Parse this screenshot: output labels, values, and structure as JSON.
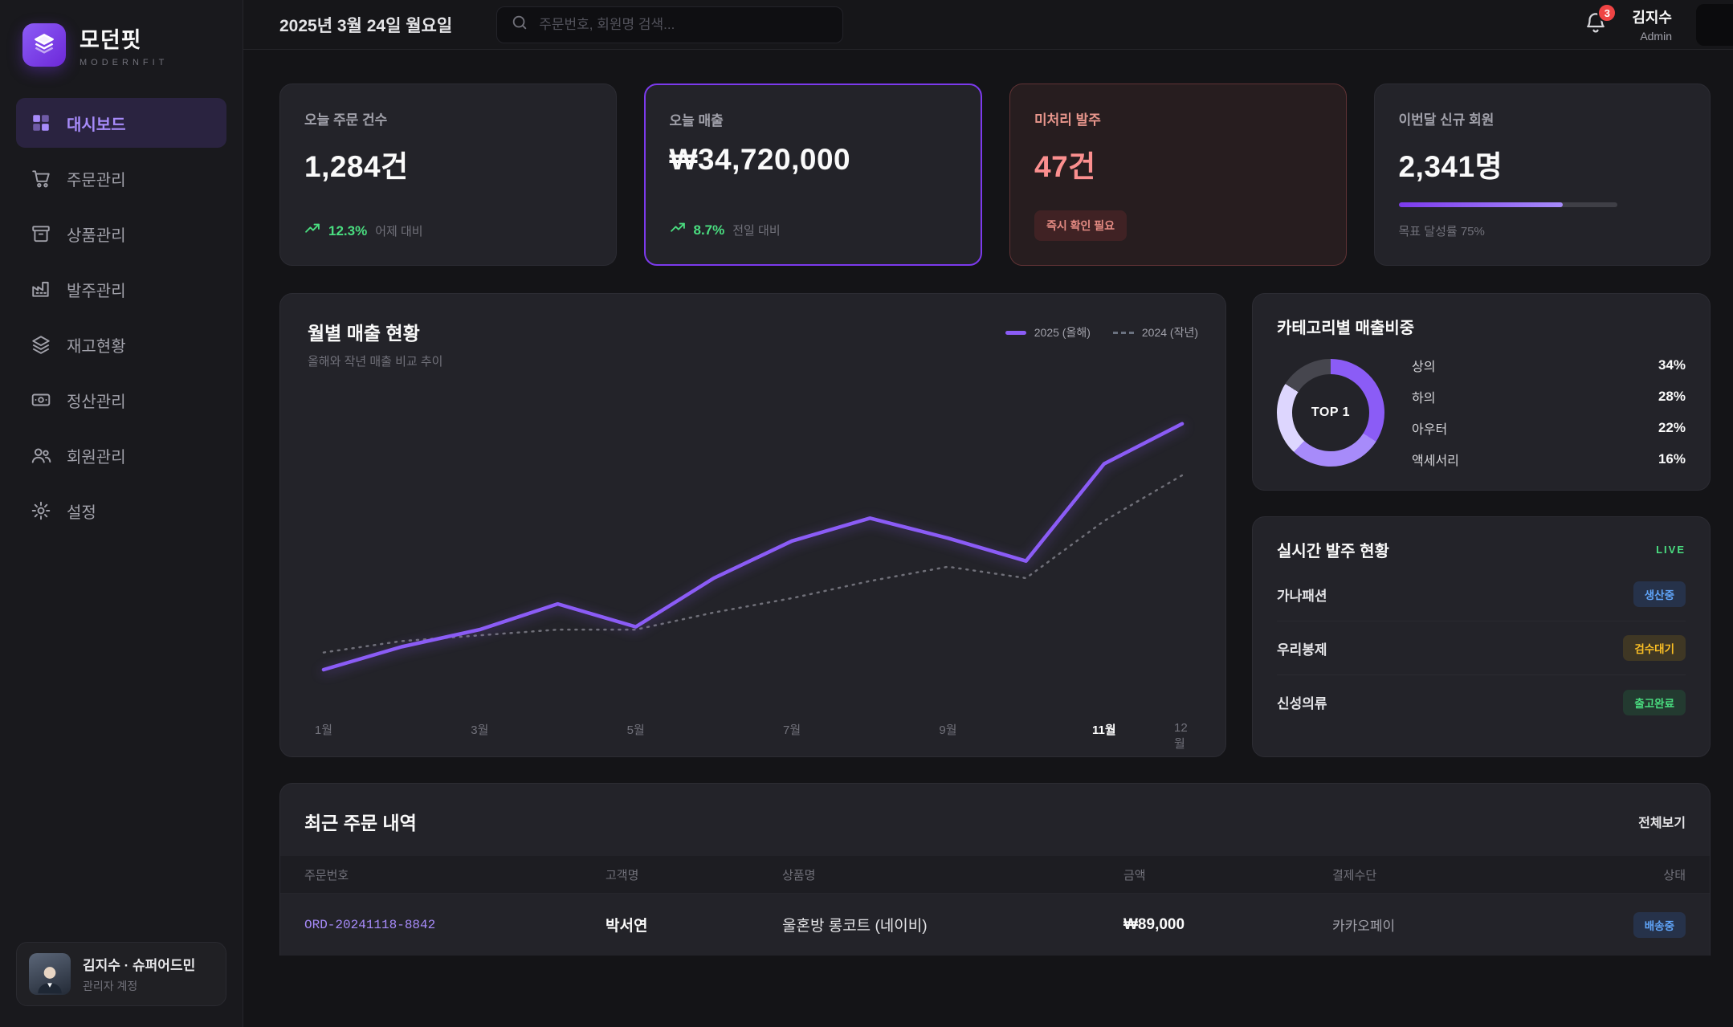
{
  "brand": {
    "name": "모던핏",
    "subtitle": "MODERNFIT"
  },
  "sidebar": {
    "items": [
      {
        "label": "대시보드",
        "active": true
      },
      {
        "label": "주문관리"
      },
      {
        "label": "상품관리"
      },
      {
        "label": "발주관리"
      },
      {
        "label": "재고현황"
      },
      {
        "label": "정산관리"
      },
      {
        "label": "회원관리"
      },
      {
        "label": "설정"
      }
    ],
    "profile": {
      "name": "김지수 · 슈퍼어드민",
      "role": "관리자 계정"
    }
  },
  "topbar": {
    "date": "2025년 3월 24일 월요일",
    "search_placeholder": "주문번호, 회원명 검색...",
    "notification_count": "3",
    "user_name": "김지수",
    "user_role": "Admin"
  },
  "stats": [
    {
      "label": "오늘 주문 건수",
      "value": "1,284건",
      "delta": "12.3%",
      "delta_note": "어제 대비"
    },
    {
      "label": "오늘 매출",
      "value": "₩34,720,000",
      "delta": "8.7%",
      "delta_note": "전일 대비"
    },
    {
      "label": "미처리 발주",
      "value": "47건",
      "badge": "즉시 확인 필요"
    },
    {
      "label": "이번달 신규 회원",
      "value": "2,341명",
      "progress_note": "목표 달성률 75%",
      "progress_pct": 75
    }
  ],
  "chart_card": {
    "title": "월별 매출 현황",
    "subtitle": "올해와 작년 매출 비교 추이",
    "legend": [
      "2025 (올해)",
      "2024 (작년)"
    ]
  },
  "chart_data": {
    "type": "line",
    "title": "월별 매출 현황",
    "x": [
      "1월",
      "2월",
      "3월",
      "4월",
      "5월",
      "6월",
      "7월",
      "8월",
      "9월",
      "10월",
      "11월",
      "12월"
    ],
    "x_tick_labels": [
      "1월",
      "3월",
      "5월",
      "7월",
      "9월",
      "11월",
      "12월"
    ],
    "highlighted_tick": "11월",
    "series": [
      {
        "name": "2025 (올해)",
        "color": "#8b5cf6",
        "style": "solid",
        "values": [
          9,
          17,
          23,
          32,
          24,
          41,
          54,
          62,
          55,
          47,
          81,
          95
        ]
      },
      {
        "name": "2024 (작년)",
        "color": "#6f6f78",
        "style": "dashed",
        "values": [
          15,
          19,
          21,
          23,
          23,
          29,
          34,
          40,
          45,
          41,
          61,
          77
        ]
      }
    ],
    "ylim": [
      0,
      100
    ],
    "grid": false,
    "legend_position": "top-right"
  },
  "category_card": {
    "title": "카테고리별 매출비중",
    "center_label": "TOP 1",
    "items": [
      {
        "label": "상의",
        "pct": 34,
        "pct_label": "34%",
        "color": "#8b5cf6"
      },
      {
        "label": "하의",
        "pct": 28,
        "pct_label": "28%",
        "color": "#a78bfa"
      },
      {
        "label": "아우터",
        "pct": 22,
        "pct_label": "22%",
        "color": "#ddd6fe"
      },
      {
        "label": "액세서리",
        "pct": 16,
        "pct_label": "16%",
        "color": "#46464e"
      }
    ]
  },
  "live_card": {
    "title": "실시간 발주 현황",
    "live_label": "LIVE",
    "items": [
      {
        "name": "가나패션",
        "status": "생산중"
      },
      {
        "name": "우리봉제",
        "status": "검수대기"
      },
      {
        "name": "신성의류",
        "status": "출고완료"
      }
    ]
  },
  "orders": {
    "title": "최근 주문 내역",
    "view_all": "전체보기",
    "columns": [
      "주문번호",
      "고객명",
      "상품명",
      "금액",
      "결제수단",
      "상태"
    ],
    "rows": [
      {
        "id": "ORD-20241118-8842",
        "customer": "박서연",
        "product": "울혼방 롱코트 (네이비)",
        "amount": "₩89,000",
        "payment": "카카오페이",
        "status": "배송중"
      }
    ]
  },
  "colors": {
    "accent": "#8b5cf6",
    "accent_dark": "#7c3aed",
    "green": "#4ade80",
    "red": "#ef4444",
    "blue_badge": "#60a5fa",
    "amber_badge": "#fbbf24"
  }
}
